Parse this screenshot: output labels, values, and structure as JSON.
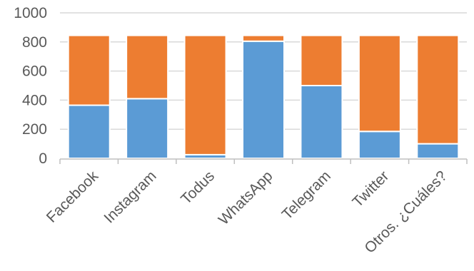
{
  "chart_data": {
    "type": "bar",
    "stacked": true,
    "categories": [
      "Facebook",
      "Instagram",
      "Todus",
      "WhatsApp",
      "Telegram",
      "Twitter",
      "Otros. ¿Cuáles?"
    ],
    "series": [
      {
        "values": [
          365,
          410,
          25,
          805,
          500,
          185,
          100
        ],
        "color": "#5b9bd5"
      },
      {
        "values": [
          480,
          435,
          820,
          40,
          345,
          660,
          745
        ],
        "color": "#ed7d31"
      }
    ],
    "yticks": [
      0,
      200,
      400,
      600,
      800,
      1000
    ],
    "ylim": [
      0,
      1000
    ],
    "title": "",
    "xlabel": "",
    "ylabel": "",
    "grid": true,
    "legend": "none"
  }
}
